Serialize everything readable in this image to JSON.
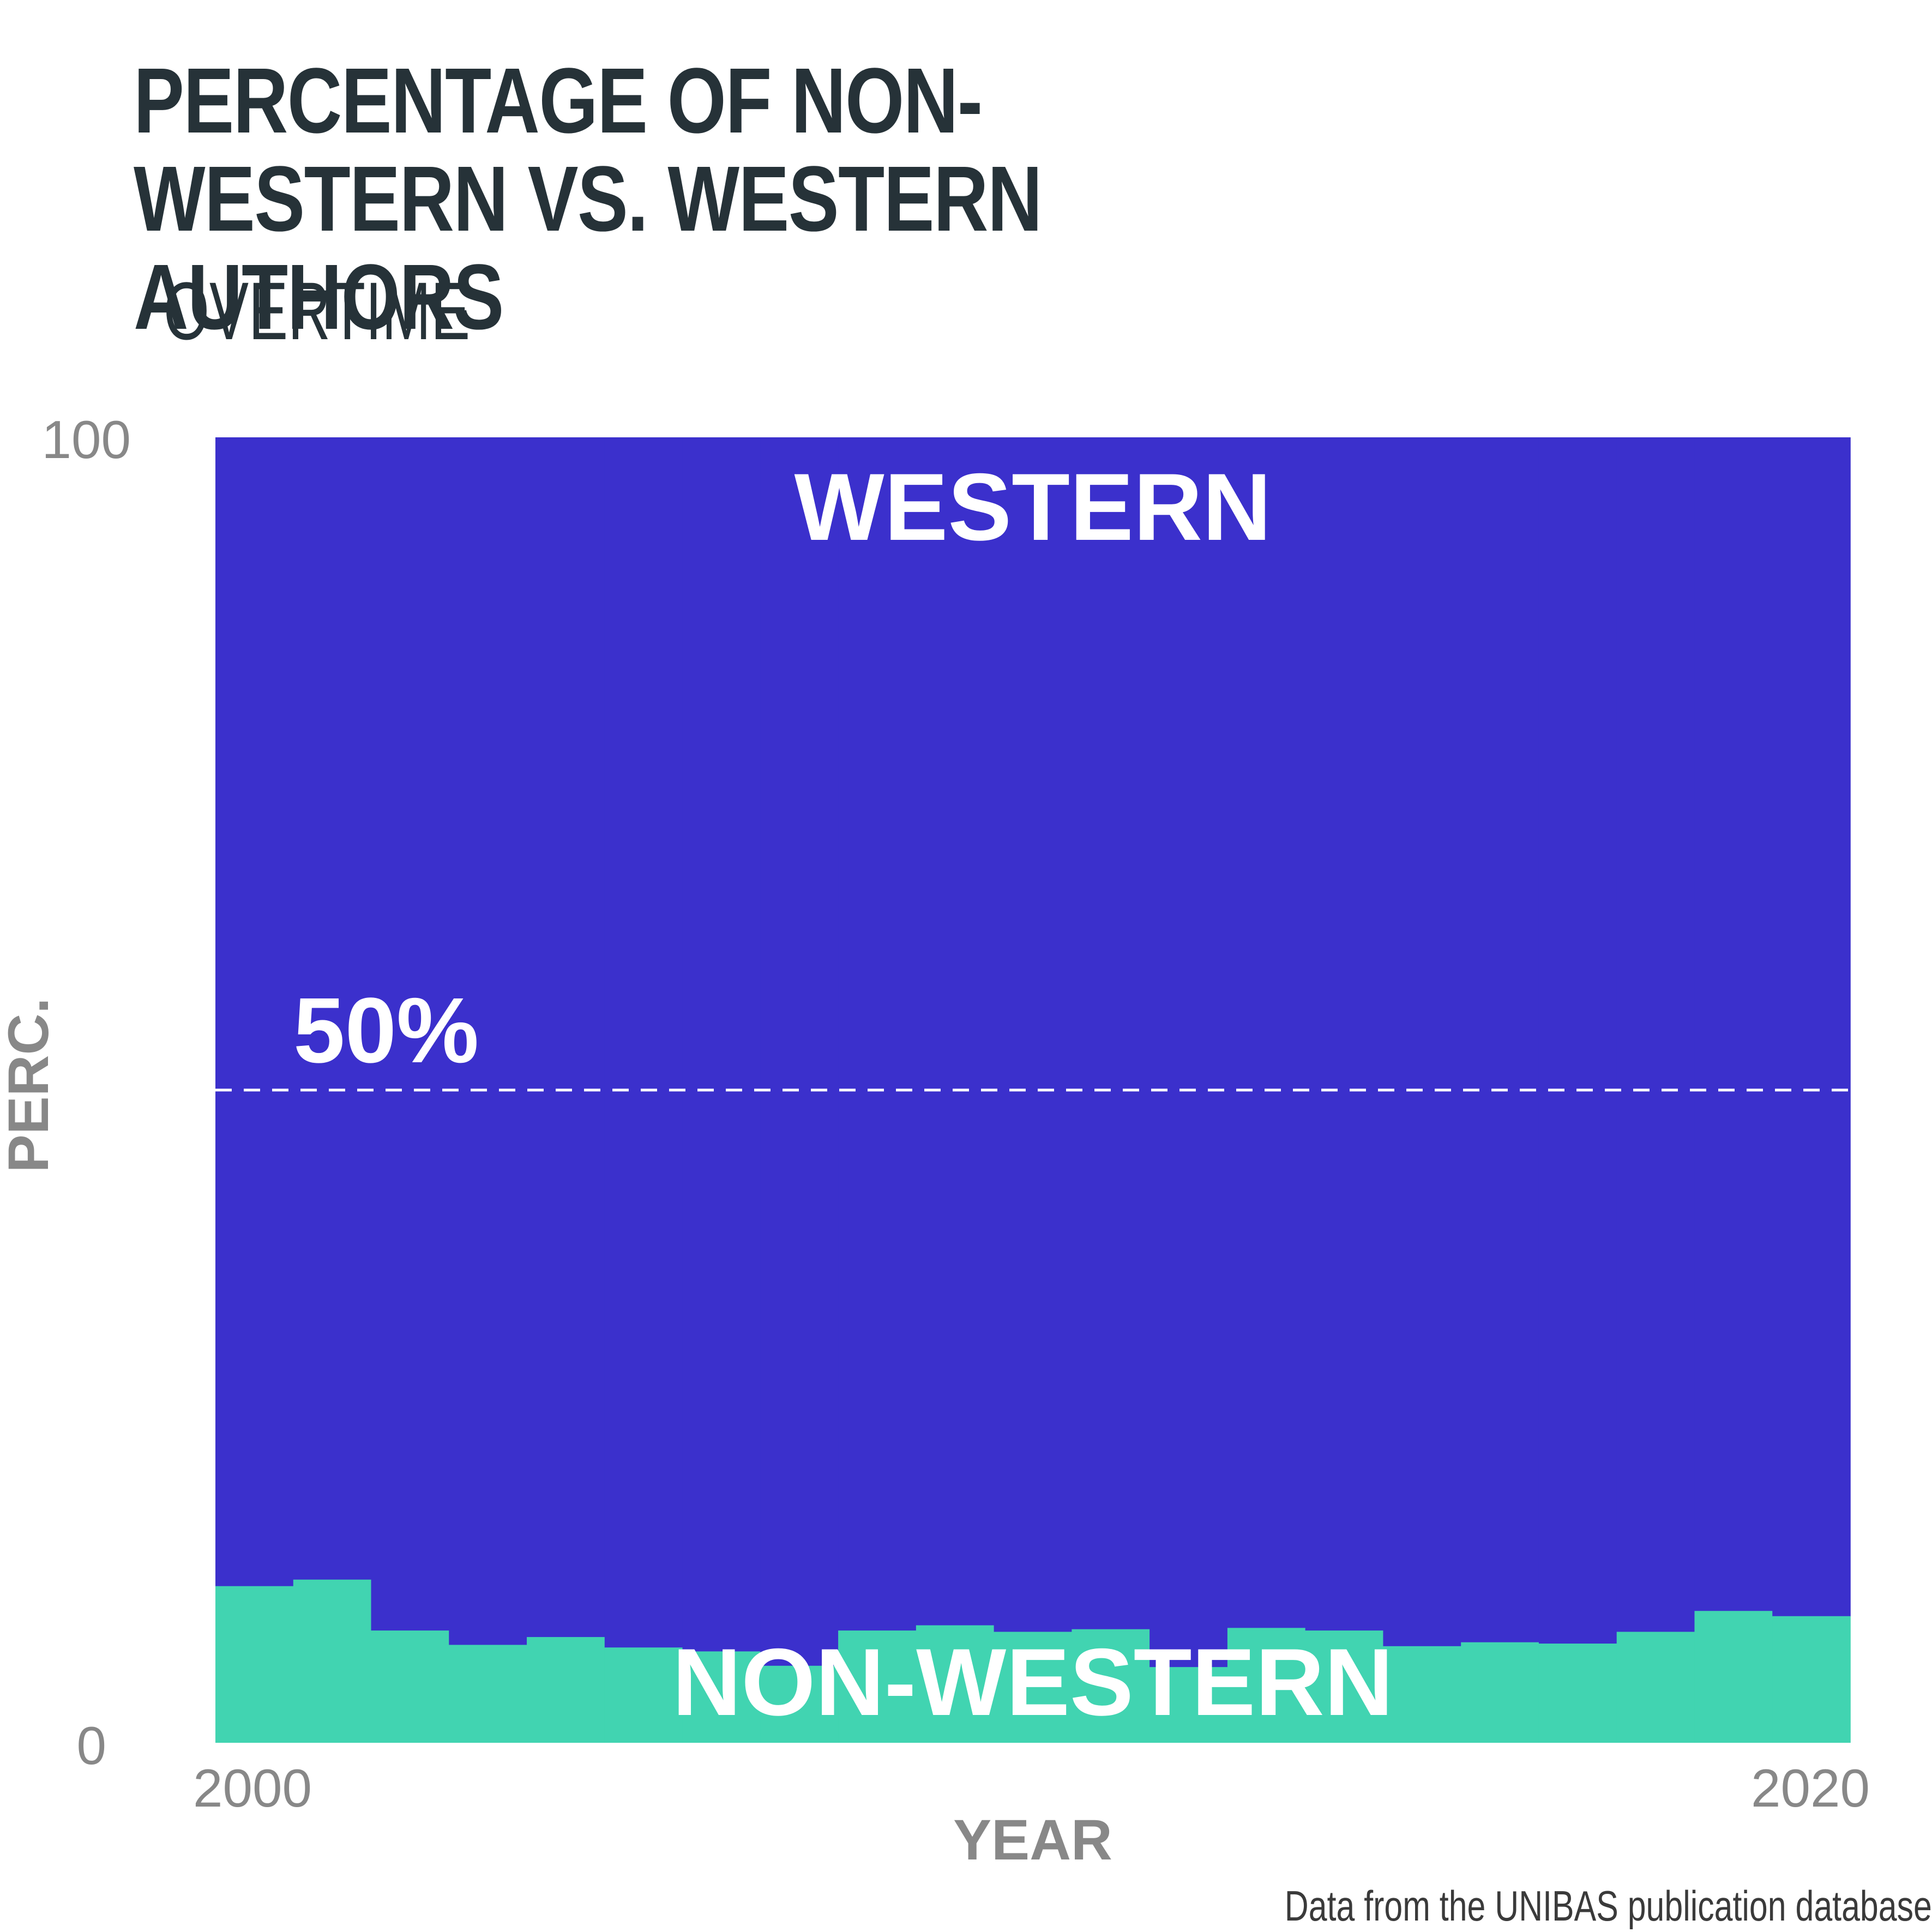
{
  "chart_data": {
    "type": "area",
    "title": "PERCENTAGE OF NON-WESTERN VS. WESTERN AUTHORS",
    "subtitle": "OVERTIME",
    "xlabel": "YEAR",
    "ylabel": "PERC.",
    "caption": "Data from the UNIBAS publication database",
    "x_ticks": [
      "2000",
      "2020"
    ],
    "y_ticks": [
      "0",
      "100"
    ],
    "xlim": [
      2000,
      2021
    ],
    "ylim": [
      0,
      100
    ],
    "reference_line": {
      "value": 50,
      "label": "50%",
      "style": "dashed"
    },
    "x": [
      2000,
      2001,
      2002,
      2003,
      2004,
      2005,
      2006,
      2007,
      2008,
      2009,
      2010,
      2011,
      2012,
      2013,
      2014,
      2015,
      2016,
      2017,
      2018,
      2019,
      2020
    ],
    "series": [
      {
        "name": "NON-WESTERN",
        "color": "#41d4b1",
        "values": [
          12.0,
          12.5,
          8.6,
          7.5,
          8.1,
          7.3,
          7.0,
          5.9,
          8.6,
          9.0,
          8.5,
          8.7,
          5.8,
          8.8,
          8.6,
          7.4,
          7.7,
          7.6,
          8.5,
          10.1,
          9.7
        ]
      },
      {
        "name": "WESTERN",
        "color": "#3b30cc",
        "values": [
          88.0,
          87.5,
          91.4,
          92.5,
          91.9,
          92.7,
          93.0,
          94.1,
          91.4,
          91.0,
          91.5,
          91.3,
          94.2,
          91.2,
          91.4,
          92.6,
          92.3,
          92.4,
          91.5,
          89.9,
          90.3
        ]
      }
    ],
    "colors": {
      "title": "#263238",
      "axis_text": "#888888",
      "label_text": "#ffffff"
    }
  }
}
